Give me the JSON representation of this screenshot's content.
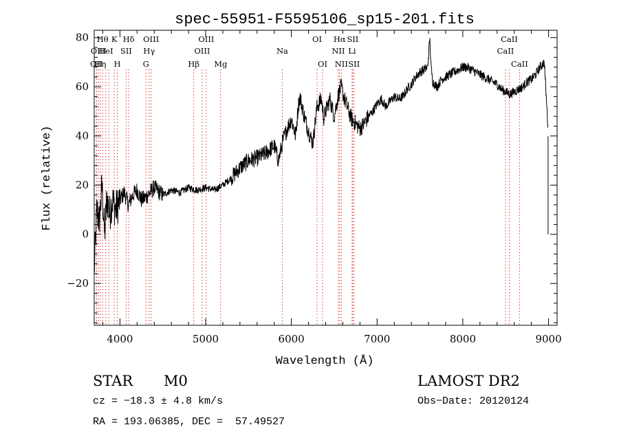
{
  "chart_data": {
    "type": "line",
    "title": "spec-55951-F5595106_sp15-201.fits",
    "xlabel": "Wavelength (Å)",
    "ylabel": "Flux (relative)",
    "xlim": [
      3700,
      9100
    ],
    "ylim": [
      -37,
      83
    ],
    "xticks": [
      4000,
      5000,
      6000,
      7000,
      8000,
      9000
    ],
    "yticks": [
      -20,
      0,
      20,
      40,
      60,
      80
    ],
    "xtick_labels": [
      "4000",
      "5000",
      "6000",
      "7000",
      "8000",
      "9000"
    ],
    "ytick_labels": [
      "−20",
      "0",
      "20",
      "40",
      "60",
      "80"
    ],
    "grid": false,
    "line_color": "#000000",
    "marker_color": "#e03030",
    "series": [
      {
        "x": [
          3700,
          3730,
          3760,
          3790,
          3820,
          3850,
          3880,
          3910,
          3950,
          4000,
          4050,
          4100,
          4150,
          4200,
          4250,
          4300,
          4350,
          4400,
          4500,
          4600,
          4700,
          4800,
          4900,
          5000,
          5100,
          5200,
          5300,
          5400,
          5500,
          5600,
          5700,
          5800,
          5850,
          5900,
          5950,
          6000,
          6050,
          6080,
          6100,
          6150,
          6200,
          6250,
          6300,
          6350,
          6380,
          6400,
          6450,
          6500,
          6550,
          6580,
          6620,
          6650,
          6700,
          6750,
          6800,
          6850,
          6900,
          6950,
          7000,
          7050,
          7100,
          7150,
          7200,
          7250,
          7300,
          7350,
          7400,
          7450,
          7500,
          7550,
          7590,
          7600,
          7615,
          7630,
          7650,
          7700,
          7750,
          7800,
          7850,
          7900,
          7950,
          8000,
          8050,
          8100,
          8150,
          8200,
          8250,
          8300,
          8350,
          8400,
          8450,
          8500,
          8550,
          8600,
          8650,
          8700,
          8750,
          8800,
          8850,
          8900,
          8950,
          9000
        ],
        "y": [
          -15,
          10,
          5,
          20,
          0,
          15,
          8,
          14,
          10,
          14,
          17,
          12,
          16,
          18,
          14,
          15,
          17,
          19,
          16,
          18,
          17,
          19,
          18,
          19,
          18,
          20,
          23,
          27,
          30,
          31,
          33,
          36,
          30,
          38,
          43,
          47,
          40,
          52,
          56,
          48,
          42,
          37,
          52,
          55,
          47,
          50,
          55,
          48,
          57,
          60,
          55,
          52,
          47,
          45,
          43,
          45,
          48,
          50,
          53,
          55,
          52,
          54,
          56,
          55,
          56,
          59,
          61,
          64,
          66,
          67,
          68,
          73,
          80,
          68,
          62,
          60,
          63,
          64,
          65,
          66,
          67,
          68,
          68,
          67,
          66,
          65,
          64,
          63,
          62,
          61,
          59,
          58,
          57,
          58,
          59,
          60,
          62,
          63,
          65,
          68,
          70,
          40
        ]
      }
    ],
    "lines": [
      {
        "x": 3726,
        "labels": [
          "OII"
        ],
        "rows": [
          3
        ]
      },
      {
        "x": 3729,
        "labels": [],
        "rows": []
      },
      {
        "x": 3750,
        "labels": [
          "OIII"
        ],
        "rows": [
          2
        ]
      },
      {
        "x": 3771,
        "labels": [
          "Hη"
        ],
        "rows": [
          3
        ]
      },
      {
        "x": 3798,
        "labels": [
          "Hθ"
        ],
        "rows": [
          1
        ]
      },
      {
        "x": 3835,
        "labels": [
          "HeI"
        ],
        "rows": [
          2
        ]
      },
      {
        "x": 3869,
        "labels": [],
        "rows": []
      },
      {
        "x": 3934,
        "labels": [
          "K"
        ],
        "rows": [
          1
        ]
      },
      {
        "x": 3969,
        "labels": [
          "H"
        ],
        "rows": [
          3
        ]
      },
      {
        "x": 4072,
        "labels": [
          "SII"
        ],
        "rows": [
          2
        ]
      },
      {
        "x": 4102,
        "labels": [
          "Hδ"
        ],
        "rows": [
          1
        ]
      },
      {
        "x": 4304,
        "labels": [
          "G"
        ],
        "rows": [
          3
        ]
      },
      {
        "x": 4341,
        "labels": [
          "Hγ"
        ],
        "rows": [
          2
        ]
      },
      {
        "x": 4363,
        "labels": [
          "OIII"
        ],
        "rows": [
          1
        ]
      },
      {
        "x": 4861,
        "labels": [
          "Hβ"
        ],
        "rows": [
          3
        ]
      },
      {
        "x": 4959,
        "labels": [
          "OIII"
        ],
        "rows": [
          2
        ]
      },
      {
        "x": 5007,
        "labels": [
          "OIII"
        ],
        "rows": [
          1
        ]
      },
      {
        "x": 5175,
        "labels": [
          "Mg"
        ],
        "rows": [
          3
        ]
      },
      {
        "x": 5894,
        "labels": [
          "Na"
        ],
        "rows": [
          2
        ]
      },
      {
        "x": 6300,
        "labels": [
          "OI"
        ],
        "rows": [
          1
        ]
      },
      {
        "x": 6364,
        "labels": [
          "OI"
        ],
        "rows": [
          3
        ]
      },
      {
        "x": 6548,
        "labels": [
          "NII"
        ],
        "rows": [
          2
        ]
      },
      {
        "x": 6563,
        "labels": [
          "Hα"
        ],
        "rows": [
          1
        ]
      },
      {
        "x": 6583,
        "labels": [
          "NII"
        ],
        "rows": [
          3
        ]
      },
      {
        "x": 6708,
        "labels": [
          "Li"
        ],
        "rows": [
          2
        ]
      },
      {
        "x": 6716,
        "labels": [
          "SII"
        ],
        "rows": [
          1
        ]
      },
      {
        "x": 6731,
        "labels": [
          "SII"
        ],
        "rows": [
          3
        ]
      },
      {
        "x": 8498,
        "labels": [
          "CaII"
        ],
        "rows": [
          2
        ]
      },
      {
        "x": 8542,
        "labels": [
          "CaII"
        ],
        "rows": [
          1
        ]
      },
      {
        "x": 8662,
        "labels": [
          "CaII"
        ],
        "rows": [
          3
        ]
      }
    ]
  },
  "info": {
    "class_label": "STAR",
    "subclass_label": "M0",
    "survey_label": "LAMOST DR2",
    "cz_text": "cz = −18.3 ± 4.8 km/s",
    "obs_date_text": "Obs−Date: 20120124",
    "coords_text": "RA = 193.06385, DEC =  57.49527"
  }
}
